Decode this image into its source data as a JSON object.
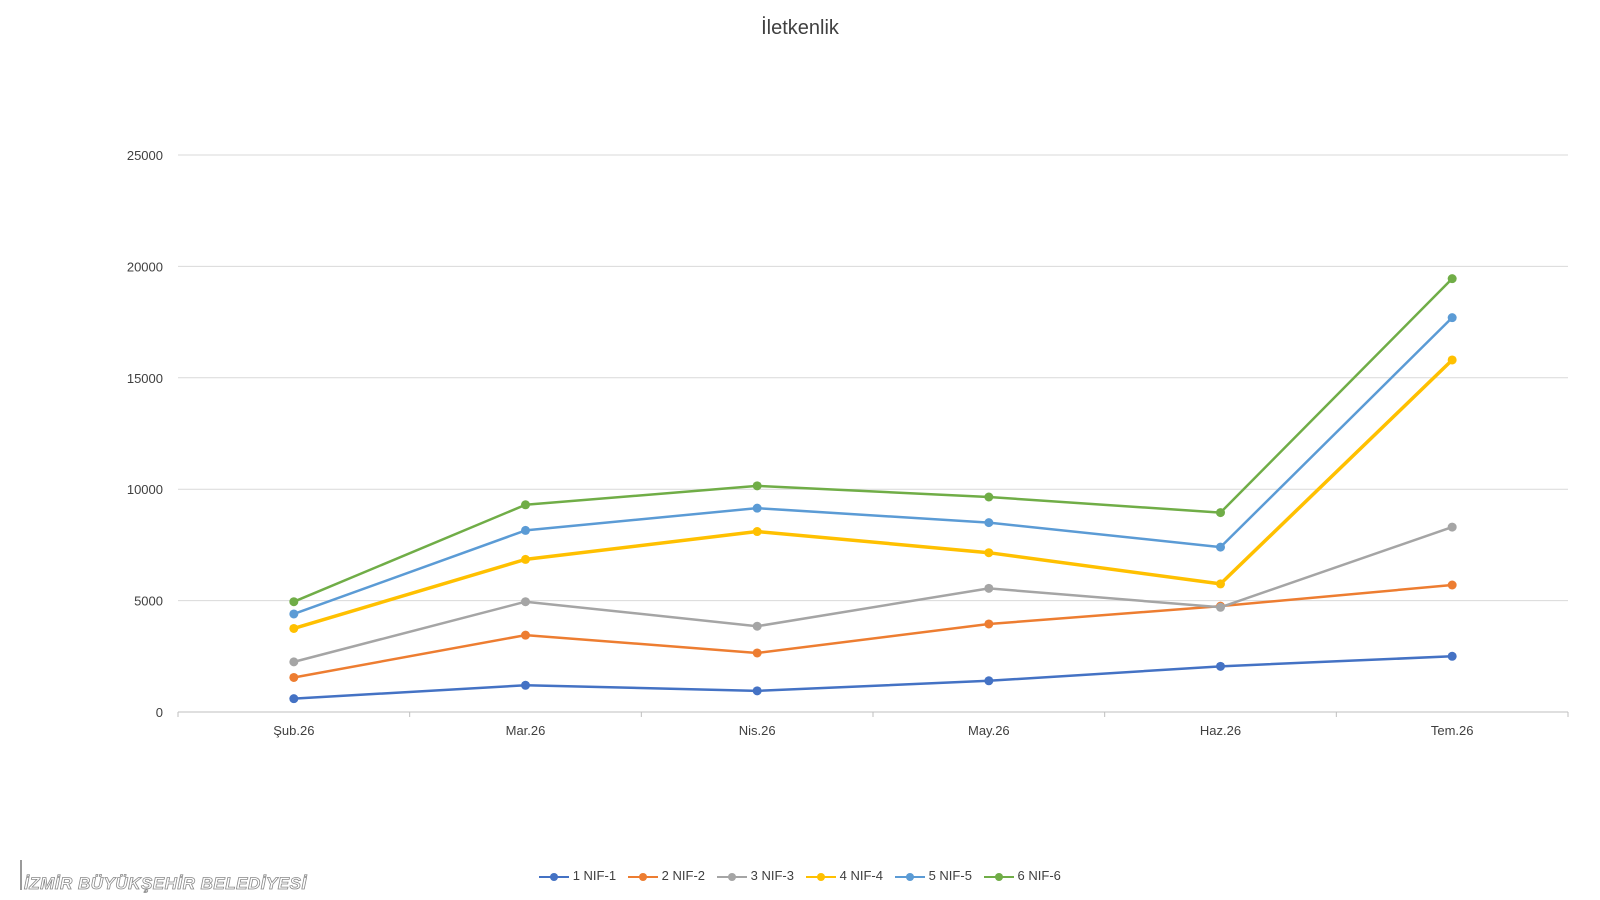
{
  "chart_data": {
    "type": "line",
    "title": "İletkenlik",
    "categories": [
      "Şub.26",
      "Mar.26",
      "Nis.26",
      "May.26",
      "Haz.26",
      "Tem.26"
    ],
    "ylim": [
      0,
      25000
    ],
    "yticks": [
      "0",
      "5000",
      "10000",
      "15000",
      "20000",
      "25000"
    ],
    "grid": "horizontal",
    "legend_position": "bottom",
    "series": [
      {
        "name": "1 NIF-1",
        "color": "#4472C4",
        "values": [
          600,
          1200,
          950,
          1400,
          2050,
          2500
        ]
      },
      {
        "name": "2 NIF-2",
        "color": "#ED7D31",
        "values": [
          1550,
          3450,
          2650,
          3950,
          4750,
          5700
        ]
      },
      {
        "name": "3 NIF-3",
        "color": "#A5A5A5",
        "values": [
          2250,
          4950,
          3850,
          5550,
          4700,
          8300
        ]
      },
      {
        "name": "4 NIF-4",
        "color": "#FFC000",
        "values": [
          3750,
          6850,
          8100,
          7150,
          5750,
          15800
        ]
      },
      {
        "name": "5 NIF-5",
        "color": "#5B9BD5",
        "values": [
          4400,
          8150,
          9150,
          8500,
          7400,
          17700
        ]
      },
      {
        "name": "6 NIF-6",
        "color": "#70AD47",
        "values": [
          4950,
          9300,
          10150,
          9650,
          8950,
          19450
        ]
      }
    ]
  },
  "logo": {
    "text": "İZMİR BÜYÜKŞEHİR BELEDİYESİ"
  }
}
